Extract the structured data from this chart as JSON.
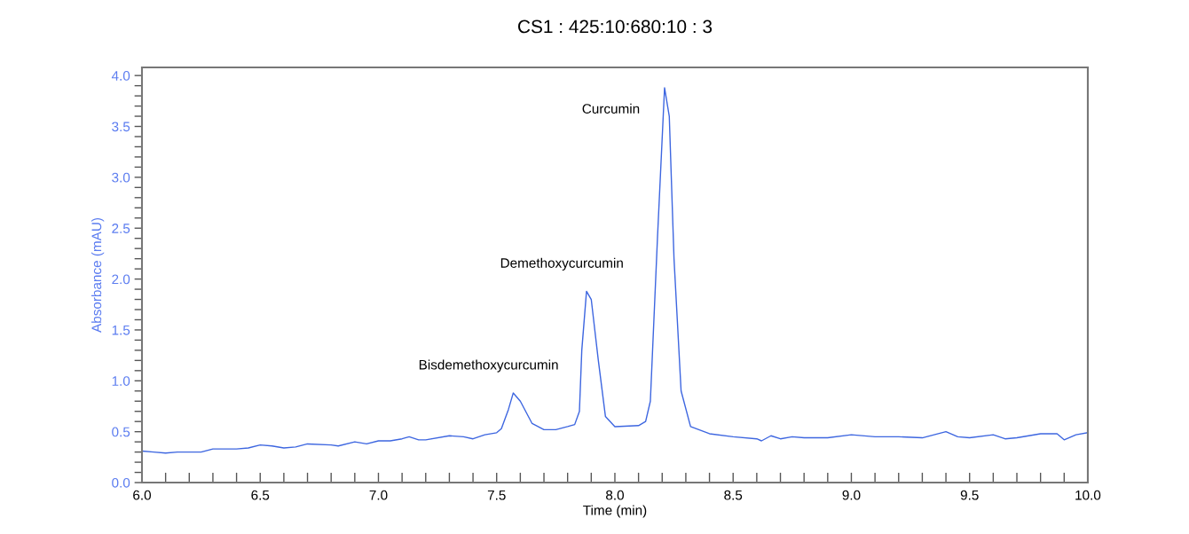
{
  "chart_data": {
    "type": "line",
    "title": "CS1 : 425:10:680:10 : 3",
    "xlabel": "Time (min)",
    "ylabel": "Absorbance (mAU)",
    "x": [
      6.0,
      6.05,
      6.1,
      6.15,
      6.2,
      6.25,
      6.3,
      6.4,
      6.45,
      6.5,
      6.55,
      6.6,
      6.65,
      6.7,
      6.8,
      6.83,
      6.9,
      6.95,
      7.0,
      7.05,
      7.1,
      7.13,
      7.17,
      7.2,
      7.3,
      7.36,
      7.4,
      7.45,
      7.5,
      7.52,
      7.55,
      7.57,
      7.6,
      7.65,
      7.7,
      7.75,
      7.8,
      7.83,
      7.85,
      7.86,
      7.88,
      7.9,
      7.93,
      7.96,
      8.0,
      8.1,
      8.13,
      8.15,
      8.18,
      8.21,
      8.23,
      8.25,
      8.28,
      8.32,
      8.4,
      8.5,
      8.6,
      8.62,
      8.66,
      8.7,
      8.75,
      8.8,
      8.9,
      9.0,
      9.1,
      9.2,
      9.3,
      9.4,
      9.45,
      9.5,
      9.6,
      9.65,
      9.7,
      9.8,
      9.87,
      9.9,
      9.95,
      10.0
    ],
    "series": [
      {
        "color": "#3d66e0",
        "values": [
          0.31,
          0.3,
          0.29,
          0.3,
          0.3,
          0.3,
          0.33,
          0.33,
          0.34,
          0.37,
          0.36,
          0.34,
          0.35,
          0.38,
          0.37,
          0.36,
          0.4,
          0.38,
          0.41,
          0.41,
          0.43,
          0.45,
          0.42,
          0.42,
          0.46,
          0.45,
          0.43,
          0.47,
          0.49,
          0.53,
          0.72,
          0.88,
          0.8,
          0.58,
          0.52,
          0.52,
          0.55,
          0.57,
          0.7,
          1.3,
          1.88,
          1.8,
          1.2,
          0.65,
          0.55,
          0.56,
          0.6,
          0.8,
          2.4,
          3.88,
          3.6,
          2.2,
          0.9,
          0.55,
          0.48,
          0.45,
          0.43,
          0.41,
          0.46,
          0.43,
          0.45,
          0.44,
          0.44,
          0.47,
          0.45,
          0.45,
          0.44,
          0.5,
          0.45,
          0.44,
          0.47,
          0.43,
          0.44,
          0.48,
          0.48,
          0.42,
          0.47,
          0.49
        ]
      }
    ],
    "xlim": [
      6.0,
      10.0
    ],
    "ylim": [
      0,
      4.08
    ],
    "xticks": [
      {
        "value": 6.0,
        "label": "6.0"
      },
      {
        "value": 6.1,
        "label": null
      },
      {
        "value": 6.2,
        "label": null
      },
      {
        "value": 6.3,
        "label": null
      },
      {
        "value": 6.4,
        "label": null
      },
      {
        "value": 6.5,
        "label": "6.5"
      },
      {
        "value": 6.6,
        "label": null
      },
      {
        "value": 6.7,
        "label": null
      },
      {
        "value": 6.8,
        "label": null
      },
      {
        "value": 6.9,
        "label": null
      },
      {
        "value": 7.0,
        "label": "7.0"
      },
      {
        "value": 7.1,
        "label": null
      },
      {
        "value": 7.2,
        "label": null
      },
      {
        "value": 7.3,
        "label": null
      },
      {
        "value": 7.4,
        "label": null
      },
      {
        "value": 7.5,
        "label": "7.5"
      },
      {
        "value": 7.6,
        "label": null
      },
      {
        "value": 7.7,
        "label": null
      },
      {
        "value": 7.8,
        "label": null
      },
      {
        "value": 7.9,
        "label": null
      },
      {
        "value": 8.0,
        "label": "8.0"
      },
      {
        "value": 8.1,
        "label": null
      },
      {
        "value": 8.2,
        "label": null
      },
      {
        "value": 8.3,
        "label": null
      },
      {
        "value": 8.4,
        "label": null
      },
      {
        "value": 8.5,
        "label": "8.5"
      },
      {
        "value": 8.6,
        "label": null
      },
      {
        "value": 8.7,
        "label": null
      },
      {
        "value": 8.8,
        "label": null
      },
      {
        "value": 8.9,
        "label": null
      },
      {
        "value": 9.0,
        "label": "9.0"
      },
      {
        "value": 9.1,
        "label": null
      },
      {
        "value": 9.2,
        "label": null
      },
      {
        "value": 9.3,
        "label": null
      },
      {
        "value": 9.4,
        "label": null
      },
      {
        "value": 9.5,
        "label": "9.5"
      },
      {
        "value": 9.6,
        "label": null
      },
      {
        "value": 9.7,
        "label": null
      },
      {
        "value": 9.8,
        "label": null
      },
      {
        "value": 9.9,
        "label": null
      },
      {
        "value": 10.0,
        "label": "10.0"
      }
    ],
    "yticks": [
      {
        "value": 0.0,
        "label": "0.0"
      },
      {
        "value": 0.1,
        "label": null
      },
      {
        "value": 0.2,
        "label": null
      },
      {
        "value": 0.3,
        "label": null
      },
      {
        "value": 0.4,
        "label": null
      },
      {
        "value": 0.5,
        "label": "0.5"
      },
      {
        "value": 0.6,
        "label": null
      },
      {
        "value": 0.7,
        "label": null
      },
      {
        "value": 0.8,
        "label": null
      },
      {
        "value": 0.9,
        "label": null
      },
      {
        "value": 1.0,
        "label": "1.0"
      },
      {
        "value": 1.1,
        "label": null
      },
      {
        "value": 1.2,
        "label": null
      },
      {
        "value": 1.3,
        "label": null
      },
      {
        "value": 1.4,
        "label": null
      },
      {
        "value": 1.5,
        "label": "1.5"
      },
      {
        "value": 1.6,
        "label": null
      },
      {
        "value": 1.7,
        "label": null
      },
      {
        "value": 1.8,
        "label": null
      },
      {
        "value": 1.9,
        "label": null
      },
      {
        "value": 2.0,
        "label": "2.0"
      },
      {
        "value": 2.1,
        "label": null
      },
      {
        "value": 2.2,
        "label": null
      },
      {
        "value": 2.3,
        "label": null
      },
      {
        "value": 2.4,
        "label": null
      },
      {
        "value": 2.5,
        "label": "2.5"
      },
      {
        "value": 2.6,
        "label": null
      },
      {
        "value": 2.7,
        "label": null
      },
      {
        "value": 2.8,
        "label": null
      },
      {
        "value": 2.9,
        "label": null
      },
      {
        "value": 3.0,
        "label": "3.0"
      },
      {
        "value": 3.1,
        "label": null
      },
      {
        "value": 3.2,
        "label": null
      },
      {
        "value": 3.3,
        "label": null
      },
      {
        "value": 3.4,
        "label": null
      },
      {
        "value": 3.5,
        "label": "3.5"
      },
      {
        "value": 3.6,
        "label": null
      },
      {
        "value": 3.7,
        "label": null
      },
      {
        "value": 3.8,
        "label": null
      },
      {
        "value": 3.9,
        "label": null
      },
      {
        "value": 4.0,
        "label": "4.0"
      }
    ],
    "annotations": [
      {
        "text": "Bisdemethoxycurcumin",
        "x": 7.57,
        "y": 0.88
      },
      {
        "text": "Demethoxycurcumin",
        "x": 7.88,
        "y": 1.88
      },
      {
        "text": "Curcumin",
        "x": 8.21,
        "y": 3.88
      }
    ],
    "grid": false,
    "legend": false,
    "marker": "none",
    "line_style": "solid"
  }
}
